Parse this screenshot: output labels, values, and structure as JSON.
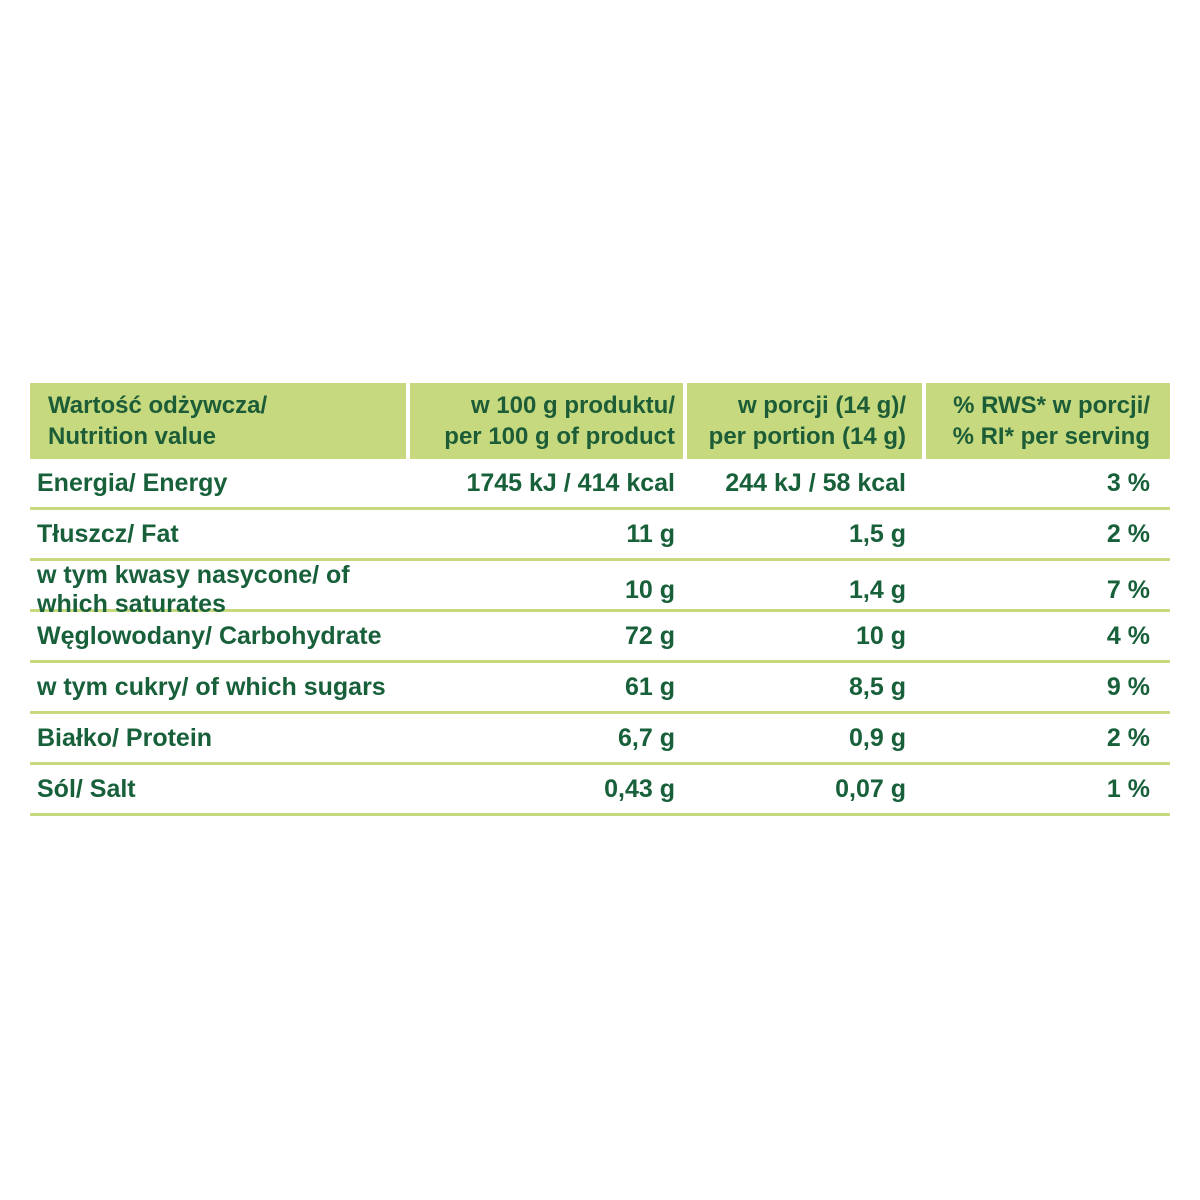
{
  "colors": {
    "header_background": "#c6d97f",
    "divider": "#c6d97f",
    "text": "#17603a",
    "page_background": "#ffffff"
  },
  "table": {
    "headers": [
      {
        "line1": "Wartość odżywcza/",
        "line2": "Nutrition value"
      },
      {
        "line1": "w 100 g produktu/",
        "line2": "per 100 g of product"
      },
      {
        "line1": "w porcji (14 g)/",
        "line2": "per portion (14 g)"
      },
      {
        "line1": "% RWS* w porcji/",
        "line2": "% RI* per serving"
      }
    ],
    "rows": [
      {
        "label": "Energia/ Energy",
        "per100": "1745 kJ / 414 kcal",
        "portion": "244 kJ / 58 kcal",
        "rws": "3 %"
      },
      {
        "label": "Tłuszcz/ Fat",
        "per100": "11 g",
        "portion": "1,5 g",
        "rws": "2 %"
      },
      {
        "label": "w tym kwasy nasycone/ of which saturates",
        "per100": "10 g",
        "portion": "1,4 g",
        "rws": "7 %"
      },
      {
        "label": "Węglowodany/ Carbohydrate",
        "per100": "72 g",
        "portion": "10 g",
        "rws": "4 %"
      },
      {
        "label": "w tym cukry/ of which sugars",
        "per100": "61 g",
        "portion": "8,5 g",
        "rws": "9 %"
      },
      {
        "label": "Białko/ Protein",
        "per100": "6,7 g",
        "portion": "0,9 g",
        "rws": "2 %"
      },
      {
        "label": "Sól/ Salt",
        "per100": "0,43 g",
        "portion": "0,07 g",
        "rws": "1 %"
      }
    ]
  }
}
